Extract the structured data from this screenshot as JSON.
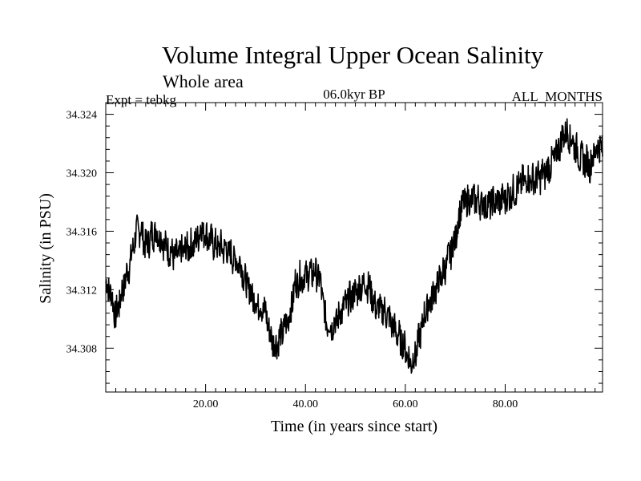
{
  "chart_data": {
    "type": "line",
    "title": "Volume Integral Upper Ocean Salinity",
    "subtitle": "Whole area",
    "experiment": "Expt = tebkg",
    "period": "06.0kyr BP",
    "months": "ALL_MONTHS",
    "xlabel": "Time (in years since start)",
    "ylabel": "Salinity (in PSU)",
    "xlim": [
      0,
      99.5
    ],
    "ylim": [
      34.305,
      34.3248
    ],
    "xticks": [
      20,
      40,
      60,
      80
    ],
    "xtick_labels": [
      "20.00",
      "40.00",
      "60.00",
      "80.00"
    ],
    "yticks": [
      34.308,
      34.312,
      34.316,
      34.32,
      34.324
    ],
    "ytick_labels": [
      "34.308",
      "34.312",
      "34.316",
      "34.320",
      "34.324"
    ],
    "grid": false,
    "series": [
      {
        "name": "Salinity",
        "x": [
          0,
          1,
          2,
          3,
          4,
          5,
          6,
          7,
          8,
          9,
          10,
          12,
          14,
          16,
          18,
          19,
          20,
          22,
          24,
          26,
          27,
          28,
          30,
          32,
          33,
          34,
          36,
          37,
          38,
          40,
          42,
          43,
          44,
          45,
          46,
          48,
          50,
          52,
          53,
          54,
          56,
          58,
          60,
          61,
          62,
          63,
          64,
          66,
          68,
          70,
          71,
          72,
          74,
          76,
          78,
          80,
          82,
          84,
          86,
          88,
          90,
          91,
          92,
          93,
          94,
          95,
          96,
          97,
          98,
          99,
          99.5
        ],
        "values": [
          34.3125,
          34.3118,
          34.3102,
          34.3115,
          34.3128,
          34.314,
          34.3158,
          34.3162,
          34.315,
          34.3156,
          34.316,
          34.315,
          34.3142,
          34.3148,
          34.3152,
          34.3162,
          34.3158,
          34.315,
          34.3148,
          34.314,
          34.3138,
          34.3125,
          34.3112,
          34.3105,
          34.3088,
          34.3082,
          34.3095,
          34.3105,
          34.3125,
          34.313,
          34.3132,
          34.3125,
          34.31,
          34.3095,
          34.3098,
          34.311,
          34.3118,
          34.3125,
          34.312,
          34.3108,
          34.3105,
          34.3092,
          34.308,
          34.307,
          34.3075,
          34.309,
          34.3105,
          34.312,
          34.3135,
          34.3155,
          34.3175,
          34.318,
          34.3182,
          34.3178,
          34.318,
          34.3182,
          34.3188,
          34.3195,
          34.3195,
          34.32,
          34.321,
          34.322,
          34.3228,
          34.3225,
          34.3218,
          34.321,
          34.3208,
          34.3205,
          34.3215,
          34.322,
          34.3212
        ]
      }
    ]
  }
}
